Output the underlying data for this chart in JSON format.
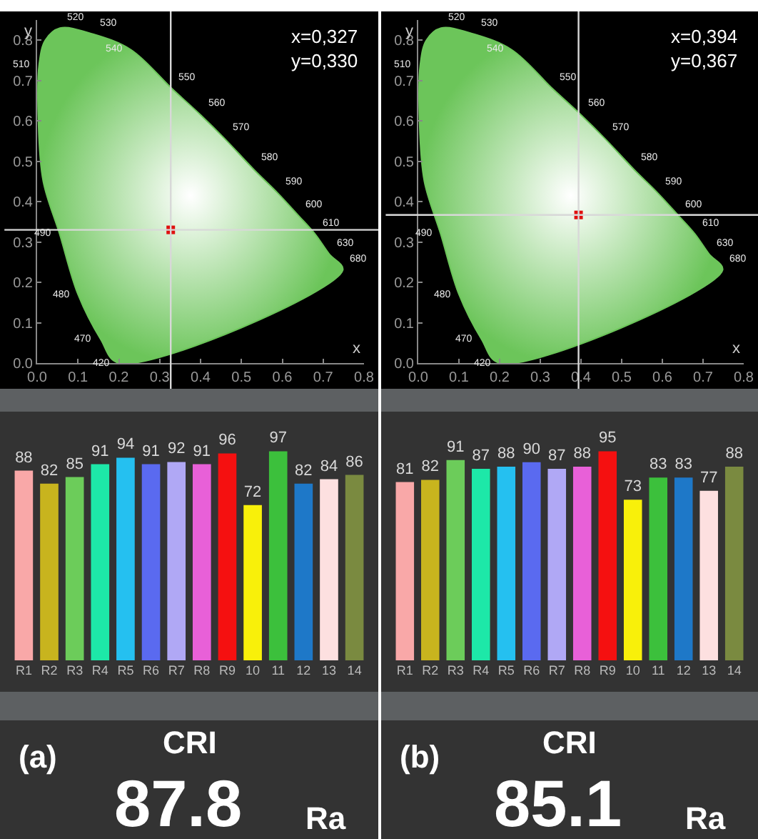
{
  "chart_data": [
    {
      "type": "scatter",
      "xlabel": "x",
      "ylabel": "y",
      "xlim": [
        0,
        0.8
      ],
      "ylim": [
        0,
        0.85
      ],
      "xticks": [
        {
          "value": 0,
          "label": "0.0"
        },
        {
          "value": 0.1,
          "label": "0.1"
        },
        {
          "value": 0.2,
          "label": "0.2"
        },
        {
          "value": 0.3,
          "label": "0.3"
        },
        {
          "value": 0.4,
          "label": "0.4"
        },
        {
          "value": 0.5,
          "label": "0.5"
        },
        {
          "value": 0.6,
          "label": "0.6"
        },
        {
          "value": 0.7,
          "label": "0.7"
        },
        {
          "value": 0.8,
          "label": "0.8"
        }
      ],
      "yticks": [
        {
          "value": 0,
          "label": "0.0"
        },
        {
          "value": 0.1,
          "label": "0.1"
        },
        {
          "value": 0.2,
          "label": "0.2"
        },
        {
          "value": 0.3,
          "label": "0.3"
        },
        {
          "value": 0.4,
          "label": "0.4"
        },
        {
          "value": 0.5,
          "label": "0.5"
        },
        {
          "value": 0.6,
          "label": "0.6"
        },
        {
          "value": 0.7,
          "label": "0.7"
        },
        {
          "value": 0.8,
          "label": "0.8"
        }
      ],
      "series": [
        {
          "type": "area",
          "color": "#6cc55a",
          "x": [
            0.2,
            0.155,
            0.1,
            0.055,
            0.015,
            0.003,
            0.005,
            0.02,
            0.056,
            0.137,
            0.23,
            0.33,
            0.4,
            0.46,
            0.53,
            0.59,
            0.64,
            0.68,
            0.715,
            0.748,
            0.2
          ],
          "values": [
            0,
            0.06,
            0.17,
            0.32,
            0.45,
            0.6,
            0.74,
            0.8,
            0.83,
            0.815,
            0.776,
            0.68,
            0.615,
            0.555,
            0.48,
            0.42,
            0.365,
            0.32,
            0.27,
            0.23,
            0
          ]
        },
        {
          "type": "scatter",
          "color": "#e01010",
          "x": [
            0.327
          ],
          "values": [
            0.33
          ]
        }
      ],
      "ref_lines": [
        {
          "axis": "x",
          "value": 0.327,
          "color": "#d8d8d8"
        },
        {
          "axis": "y",
          "value": 0.33,
          "color": "#d8d8d8"
        }
      ],
      "annotations": [
        "x=0,327",
        "y=0,330",
        {
          "text": "520",
          "x": 0.056,
          "y": 0.83
        },
        {
          "text": "530",
          "x": 0.137,
          "y": 0.815
        },
        {
          "text": "540",
          "x": 0.23,
          "y": 0.776
        },
        {
          "text": "550",
          "x": 0.33,
          "y": 0.68
        },
        {
          "text": "560",
          "x": 0.4,
          "y": 0.615
        },
        {
          "text": "570",
          "x": 0.46,
          "y": 0.555
        },
        {
          "text": "580",
          "x": 0.53,
          "y": 0.48
        },
        {
          "text": "590",
          "x": 0.59,
          "y": 0.42
        },
        {
          "text": "600",
          "x": 0.64,
          "y": 0.365
        },
        {
          "text": "610",
          "x": 0.68,
          "y": 0.32
        },
        {
          "text": "630",
          "x": 0.715,
          "y": 0.27
        },
        {
          "text": "680",
          "x": 0.748,
          "y": 0.23
        },
        {
          "text": "510",
          "x": 0.005,
          "y": 0.74
        },
        {
          "text": "490",
          "x": 0.055,
          "y": 0.32
        },
        {
          "text": "480",
          "x": 0.1,
          "y": 0.17
        },
        {
          "text": "470",
          "x": 0.155,
          "y": 0.06
        },
        {
          "text": "420",
          "x": 0.2,
          "y": 0
        }
      ]
    },
    {
      "type": "scatter",
      "xlabel": "x",
      "ylabel": "y",
      "xlim": [
        0,
        0.8
      ],
      "ylim": [
        0,
        0.85
      ],
      "xticks": [
        {
          "value": 0,
          "label": "0.0"
        },
        {
          "value": 0.1,
          "label": "0.1"
        },
        {
          "value": 0.2,
          "label": "0.2"
        },
        {
          "value": 0.3,
          "label": "0.3"
        },
        {
          "value": 0.4,
          "label": "0.4"
        },
        {
          "value": 0.5,
          "label": "0.5"
        },
        {
          "value": 0.6,
          "label": "0.6"
        },
        {
          "value": 0.7,
          "label": "0.7"
        },
        {
          "value": 0.8,
          "label": "0.8"
        }
      ],
      "yticks": [
        {
          "value": 0,
          "label": "0.0"
        },
        {
          "value": 0.1,
          "label": "0.1"
        },
        {
          "value": 0.2,
          "label": "0.2"
        },
        {
          "value": 0.3,
          "label": "0.3"
        },
        {
          "value": 0.4,
          "label": "0.4"
        },
        {
          "value": 0.5,
          "label": "0.5"
        },
        {
          "value": 0.6,
          "label": "0.6"
        },
        {
          "value": 0.7,
          "label": "0.7"
        },
        {
          "value": 0.8,
          "label": "0.8"
        }
      ],
      "series": [
        {
          "type": "area",
          "color": "#6cc55a",
          "x": [
            0.2,
            0.155,
            0.1,
            0.055,
            0.015,
            0.003,
            0.005,
            0.02,
            0.056,
            0.137,
            0.23,
            0.33,
            0.4,
            0.46,
            0.53,
            0.59,
            0.64,
            0.68,
            0.715,
            0.748,
            0.2
          ],
          "values": [
            0,
            0.06,
            0.17,
            0.32,
            0.45,
            0.6,
            0.74,
            0.8,
            0.83,
            0.815,
            0.776,
            0.68,
            0.615,
            0.555,
            0.48,
            0.42,
            0.365,
            0.32,
            0.27,
            0.23,
            0
          ]
        },
        {
          "type": "scatter",
          "color": "#e01010",
          "x": [
            0.394
          ],
          "values": [
            0.367
          ]
        }
      ],
      "ref_lines": [
        {
          "axis": "x",
          "value": 0.394,
          "color": "#d8d8d8"
        },
        {
          "axis": "y",
          "value": 0.367,
          "color": "#d8d8d8"
        }
      ],
      "annotations": [
        "x=0,394",
        "y=0,367",
        {
          "text": "520",
          "x": 0.056,
          "y": 0.83
        },
        {
          "text": "530",
          "x": 0.137,
          "y": 0.815
        },
        {
          "text": "540",
          "x": 0.23,
          "y": 0.776
        },
        {
          "text": "550",
          "x": 0.33,
          "y": 0.68
        },
        {
          "text": "560",
          "x": 0.4,
          "y": 0.615
        },
        {
          "text": "570",
          "x": 0.46,
          "y": 0.555
        },
        {
          "text": "580",
          "x": 0.53,
          "y": 0.48
        },
        {
          "text": "590",
          "x": 0.59,
          "y": 0.42
        },
        {
          "text": "600",
          "x": 0.64,
          "y": 0.365
        },
        {
          "text": "610",
          "x": 0.68,
          "y": 0.32
        },
        {
          "text": "630",
          "x": 0.715,
          "y": 0.27
        },
        {
          "text": "680",
          "x": 0.748,
          "y": 0.23
        },
        {
          "text": "510",
          "x": 0.005,
          "y": 0.74
        },
        {
          "text": "490",
          "x": 0.055,
          "y": 0.32
        },
        {
          "text": "480",
          "x": 0.1,
          "y": 0.17
        },
        {
          "text": "470",
          "x": 0.155,
          "y": 0.06
        },
        {
          "text": "420",
          "x": 0.2,
          "y": 0
        }
      ]
    },
    {
      "type": "bar",
      "categories": [
        "R1",
        "R2",
        "R3",
        "R4",
        "R5",
        "R6",
        "R7",
        "R8",
        "R9",
        "10",
        "11",
        "12",
        "13",
        "14"
      ],
      "values": [
        88,
        82,
        85,
        91,
        94,
        91,
        92,
        91,
        96,
        72,
        97,
        82,
        84,
        86
      ],
      "colors": [
        "#f9a8a8",
        "#c8b41e",
        "#6ccc5a",
        "#1de8a8",
        "#25c0f0",
        "#5a6af0",
        "#b0a8f5",
        "#e860d8",
        "#f51010",
        "#f8f00a",
        "#3cc03c",
        "#1e78c8",
        "#fde0e0",
        "#7a8a40"
      ],
      "data_labels": true,
      "annotations": [
        "(a)",
        "CRI",
        "87.8",
        "Ra"
      ]
    },
    {
      "type": "bar",
      "categories": [
        "R1",
        "R2",
        "R3",
        "R4",
        "R5",
        "R6",
        "R7",
        "R8",
        "R9",
        "10",
        "11",
        "12",
        "13",
        "14"
      ],
      "values": [
        81,
        82,
        91,
        87,
        88,
        90,
        87,
        88,
        95,
        73,
        83,
        83,
        77,
        88
      ],
      "colors": [
        "#f9a8a8",
        "#c8b41e",
        "#6ccc5a",
        "#1de8a8",
        "#25c0f0",
        "#5a6af0",
        "#b0a8f5",
        "#e860d8",
        "#f51010",
        "#f8f00a",
        "#3cc03c",
        "#1e78c8",
        "#fde0e0",
        "#7a8a40"
      ],
      "data_labels": true,
      "annotations": [
        "(b)",
        "CRI",
        "85.1",
        "Ra"
      ]
    }
  ]
}
